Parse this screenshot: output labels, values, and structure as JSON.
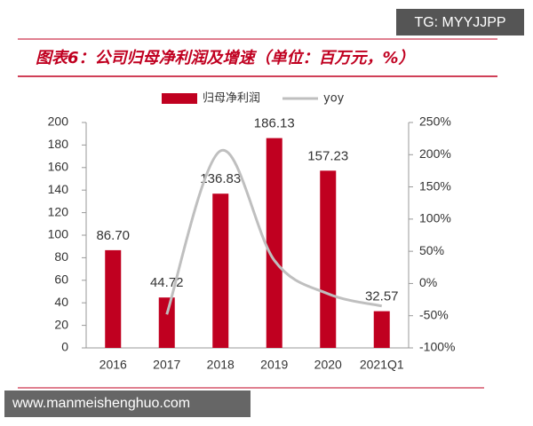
{
  "watermark_top": "TG: MYYJJPP",
  "watermark_bottom": "www.manmeishenghuo.com",
  "chart_data": {
    "type": "bar-line",
    "title": "图表6：公司归母净利润及增速（单位：百万元，%）",
    "categories": [
      "2016",
      "2017",
      "2018",
      "2019",
      "2020",
      "2021Q1"
    ],
    "series": [
      {
        "name": "归母净利润",
        "type": "bar",
        "color": "#c00020",
        "values": [
          86.7,
          44.72,
          136.83,
          186.13,
          157.23,
          32.57
        ],
        "value_labels": [
          "86.70",
          "44.72",
          "136.83",
          "186.13",
          "157.23",
          "32.57"
        ]
      },
      {
        "name": "yoy",
        "type": "line",
        "axis": "y2",
        "color": "#bfbfbf",
        "values": [
          null,
          -48,
          206,
          36,
          -16,
          -35
        ]
      }
    ],
    "ylim": [
      0,
      200
    ],
    "yticks": [
      0,
      20,
      40,
      60,
      80,
      100,
      120,
      140,
      160,
      180,
      200
    ],
    "y2lim": [
      -100,
      250
    ],
    "y2ticks": [
      {
        "value": -100,
        "label": "-100%"
      },
      {
        "value": -50,
        "label": "-50%"
      },
      {
        "value": 0,
        "label": "0%"
      },
      {
        "value": 50,
        "label": "50%"
      },
      {
        "value": 100,
        "label": "100%"
      },
      {
        "value": 150,
        "label": "150%"
      },
      {
        "value": 200,
        "label": "200%"
      },
      {
        "value": 250,
        "label": "250%"
      }
    ]
  }
}
